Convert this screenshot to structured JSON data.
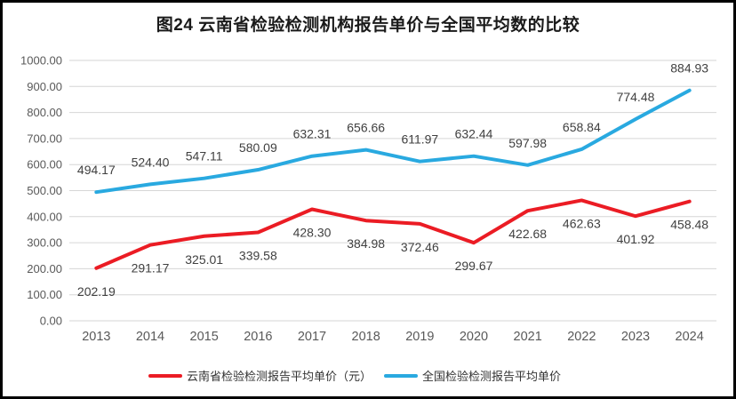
{
  "chart_data": {
    "type": "line",
    "title": "图24 云南省检验检测机构报告单价与全国平均数的比较",
    "categories": [
      "2013",
      "2014",
      "2015",
      "2016",
      "2017",
      "2018",
      "2019",
      "2020",
      "2021",
      "2022",
      "2023",
      "2024"
    ],
    "series": [
      {
        "name": "云南省检验检测报告平均单价（元）",
        "color": "#EB1C24",
        "label_position": "below",
        "values": [
          202.19,
          291.17,
          325.01,
          339.58,
          428.3,
          384.98,
          372.46,
          299.67,
          422.68,
          462.63,
          401.92,
          458.48
        ]
      },
      {
        "name": "全国检验检测报告平均单价",
        "color": "#29A9E0",
        "label_position": "above",
        "values": [
          494.17,
          524.4,
          547.11,
          580.09,
          632.31,
          656.66,
          611.97,
          632.44,
          597.98,
          658.84,
          774.48,
          884.93
        ]
      }
    ],
    "ylim": [
      0,
      1000
    ],
    "ytick_step": 100,
    "yticks": [
      "0.00",
      "100.00",
      "200.00",
      "300.00",
      "400.00",
      "500.00",
      "600.00",
      "700.00",
      "800.00",
      "900.00",
      "1000.00"
    ],
    "value_label_decimals": 2,
    "grid": "horizontal",
    "legend_position": "bottom"
  },
  "style": {
    "grid_color": "#D6D6D6",
    "axis_text_color": "#595959",
    "value_label_color": "#404040",
    "title_color": "#1a1a1a",
    "background": "#ffffff",
    "border_color": "#000000"
  }
}
